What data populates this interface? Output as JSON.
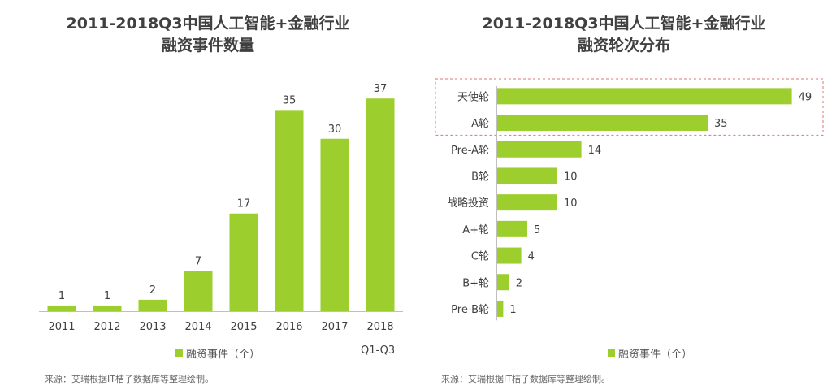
{
  "colors": {
    "bar": "#9ccf2e",
    "axis": "#bfbfbf",
    "text": "#404040",
    "highlight_border": "#e0737a"
  },
  "chart_data": [
    {
      "type": "bar",
      "title_lines": [
        "2011-2018Q3中国人工智能+金融行业",
        "融资事件数量"
      ],
      "categories": [
        "2011",
        "2012",
        "2013",
        "2014",
        "2015",
        "2016",
        "2017",
        "2018"
      ],
      "category_note": "Q1-Q3",
      "series": [
        {
          "name": "融资事件（个）",
          "values": [
            1,
            1,
            2,
            7,
            17,
            35,
            30,
            37
          ]
        }
      ],
      "ylim": [
        0,
        40
      ],
      "grid": false,
      "legend": "bottom",
      "source": "来源：艾瑞根据IT桔子数据库等整理绘制。"
    },
    {
      "type": "bar",
      "orientation": "horizontal",
      "title_lines": [
        "2011-2018Q3中国人工智能+金融行业",
        "融资轮次分布"
      ],
      "categories": [
        "天使轮",
        "A轮",
        "Pre-A轮",
        "B轮",
        "战略投资",
        "A+轮",
        "C轮",
        "B+轮",
        "Pre-B轮"
      ],
      "series": [
        {
          "name": "融资事件（个）",
          "values": [
            49,
            35,
            14,
            10,
            10,
            5,
            4,
            2,
            1
          ]
        }
      ],
      "xlim": [
        0,
        50
      ],
      "grid": false,
      "legend": "bottom",
      "highlighted_categories": [
        "天使轮",
        "A轮"
      ],
      "source": "来源：艾瑞根据IT桔子数据库等整理绘制。"
    }
  ]
}
